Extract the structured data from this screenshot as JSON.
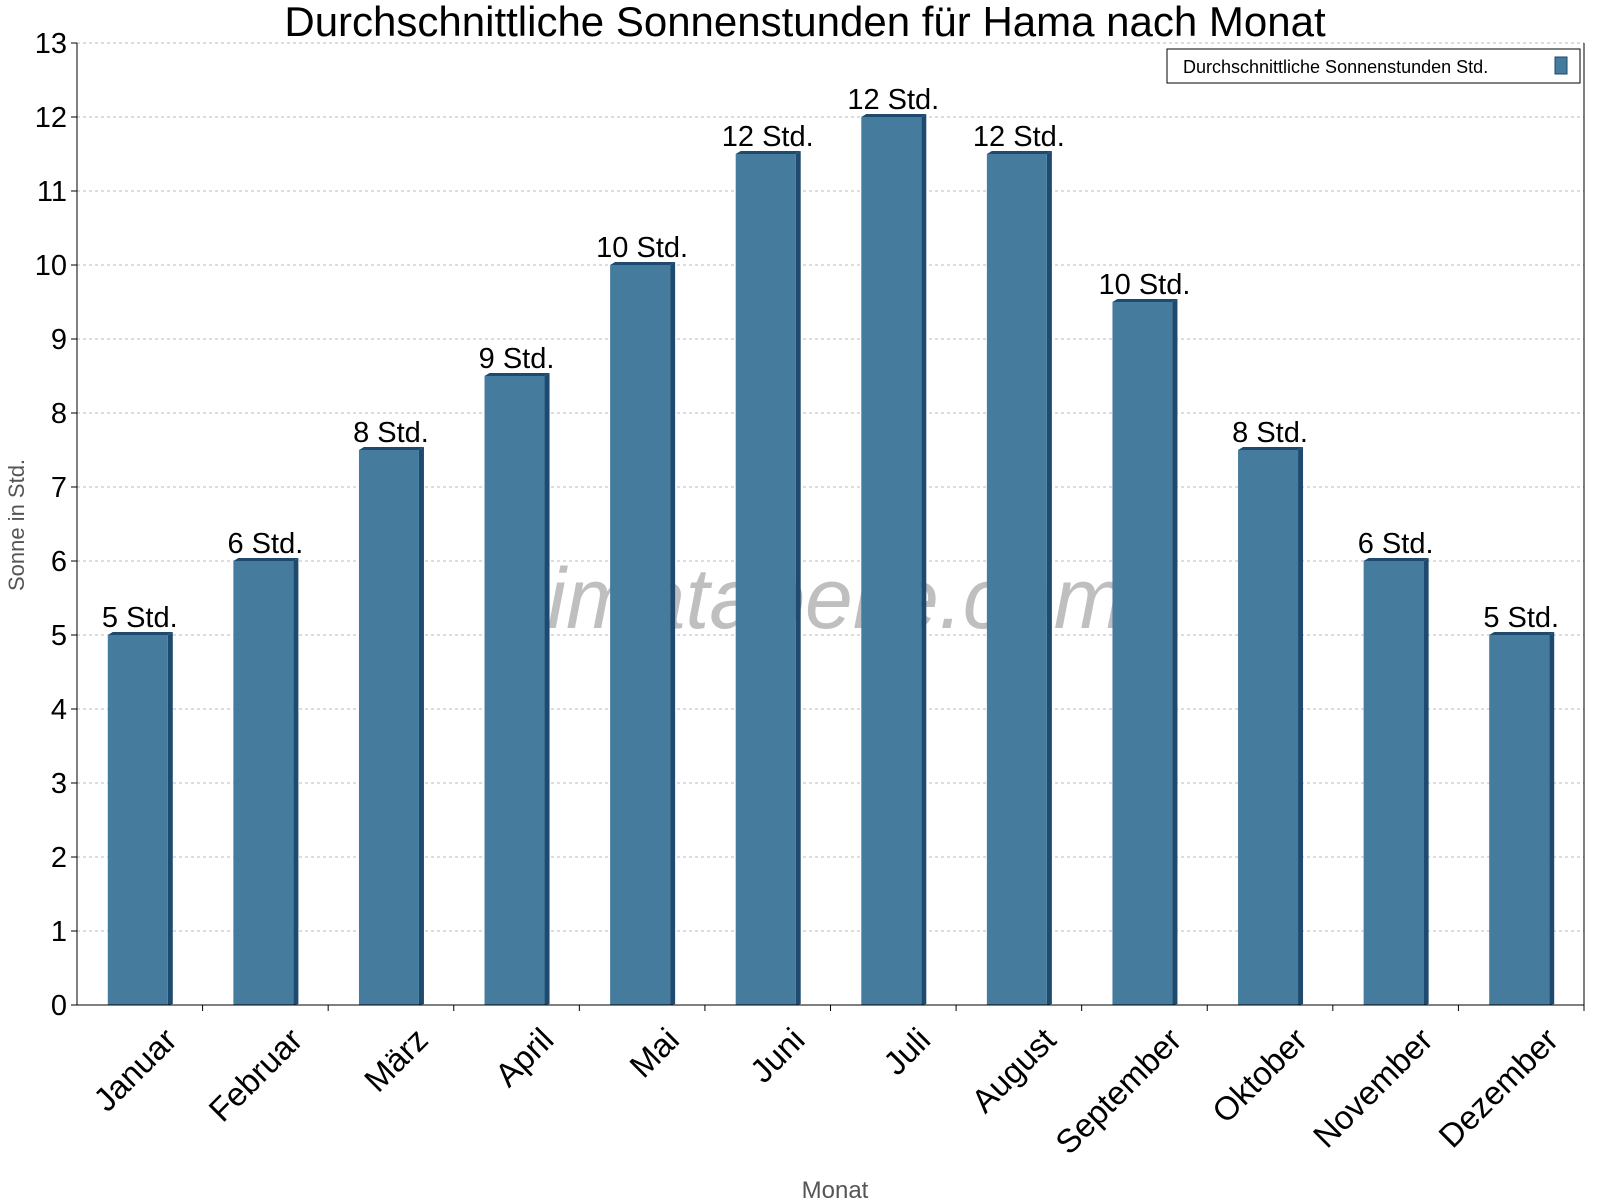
{
  "chart_data": {
    "type": "bar",
    "title": "Durchschnittliche Sonnenstunden für Hama nach Monat",
    "xlabel": "Monat",
    "ylabel": "Sonne in Std.",
    "ylim": [
      0,
      13
    ],
    "yticks": [
      "0",
      "1",
      "2",
      "3",
      "4",
      "5",
      "6",
      "7",
      "8",
      "9",
      "10",
      "11",
      "12",
      "13"
    ],
    "grid": true,
    "legend_position": "top-right",
    "categories": [
      "Januar",
      "Februar",
      "März",
      "April",
      "Mai",
      "Juni",
      "Juli",
      "August",
      "September",
      "Oktober",
      "November",
      "Dezember"
    ],
    "series": [
      {
        "name": "Durchschnittliche Sonnenstunden Std.",
        "color": "#457b9d",
        "values": [
          5,
          6,
          7.5,
          8.5,
          10,
          11.5,
          12,
          11.5,
          9.5,
          7.5,
          6,
          5
        ],
        "data_labels": [
          "5 Std.",
          "6 Std.",
          "8 Std.",
          "9 Std.",
          "10 Std.",
          "12 Std.",
          "12 Std.",
          "12 Std.",
          "10 Std.",
          "8 Std.",
          "6 Std.",
          "5 Std."
        ]
      }
    ],
    "watermark": "klimatabelle.com"
  }
}
